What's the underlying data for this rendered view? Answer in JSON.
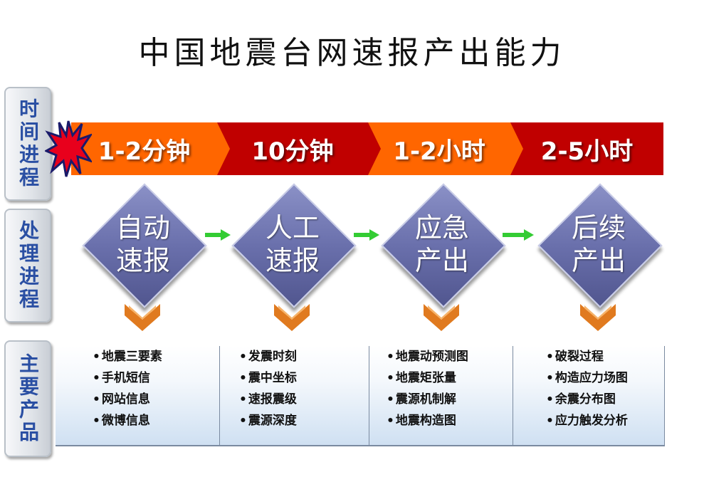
{
  "title": "中国地震台网速报产出能力",
  "side_labels": {
    "time": "时间进程",
    "process": "处理进程",
    "products": "主要产品"
  },
  "timeline": [
    "1-2分钟",
    "10分钟",
    "1-2小时",
    "2-5小时"
  ],
  "timeline_colors": [
    "#ff6600",
    "#c00000",
    "#ff6600",
    "#c00000"
  ],
  "stages": [
    {
      "line1": "自动",
      "line2": "速报"
    },
    {
      "line1": "人工",
      "line2": "速报"
    },
    {
      "line1": "应急",
      "line2": "产出"
    },
    {
      "line1": "后续",
      "line2": "产出"
    }
  ],
  "products": [
    [
      "地震三要素",
      "手机短信",
      "网站信息",
      "微博信息"
    ],
    [
      "发震时刻",
      "震中坐标",
      "速报震级",
      "震源深度"
    ],
    [
      "地震动预测图",
      "地震矩张量",
      "震源机制解",
      "地震构造图"
    ],
    [
      "破裂过程",
      "构造应力场图",
      "余震分布图",
      "应力触发分析"
    ]
  ],
  "colors": {
    "diamond": "#6a70ac",
    "chevron": "#e07a1f",
    "connector": "#33cc33",
    "side_text": "#2a4fa3"
  }
}
